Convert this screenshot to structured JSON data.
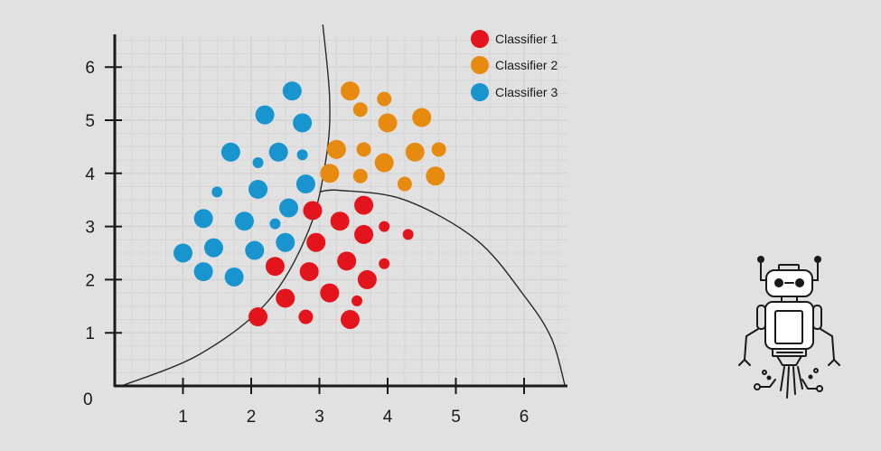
{
  "chart_data": {
    "type": "scatter",
    "title": "",
    "xlabel": "",
    "ylabel": "",
    "xlim": [
      0,
      6.6
    ],
    "ylim": [
      0,
      6.5
    ],
    "xticks": [
      "1",
      "2",
      "3",
      "4",
      "5",
      "6"
    ],
    "yticks": [
      "1",
      "2",
      "3",
      "4",
      "5",
      "6"
    ],
    "origin_label": "0",
    "grid": true,
    "legend_position": "top-right",
    "series": [
      {
        "name": "Classifier 1",
        "color": "#e3141b",
        "points": [
          [
            2.9,
            3.3,
            "l"
          ],
          [
            3.3,
            3.1,
            "l"
          ],
          [
            3.65,
            3.4,
            "l"
          ],
          [
            3.95,
            3.0,
            "s"
          ],
          [
            2.95,
            2.7,
            "l"
          ],
          [
            3.65,
            2.85,
            "l"
          ],
          [
            4.3,
            2.85,
            "s"
          ],
          [
            2.35,
            2.25,
            "l"
          ],
          [
            2.85,
            2.15,
            "l"
          ],
          [
            3.4,
            2.35,
            "l"
          ],
          [
            3.7,
            2.0,
            "l"
          ],
          [
            3.95,
            2.3,
            "s"
          ],
          [
            2.5,
            1.65,
            "l"
          ],
          [
            3.15,
            1.75,
            "l"
          ],
          [
            3.55,
            1.6,
            "s"
          ],
          [
            2.1,
            1.3,
            "l"
          ],
          [
            2.8,
            1.3,
            "m"
          ],
          [
            3.45,
            1.25,
            "l"
          ]
        ]
      },
      {
        "name": "Classifier 2",
        "color": "#e68a10",
        "points": [
          [
            3.45,
            5.55,
            "l"
          ],
          [
            3.95,
            5.4,
            "m"
          ],
          [
            3.6,
            5.2,
            "m"
          ],
          [
            4.0,
            4.95,
            "l"
          ],
          [
            4.5,
            5.05,
            "l"
          ],
          [
            3.25,
            4.45,
            "l"
          ],
          [
            3.65,
            4.45,
            "m"
          ],
          [
            4.4,
            4.4,
            "l"
          ],
          [
            4.75,
            4.45,
            "m"
          ],
          [
            3.15,
            4.0,
            "l"
          ],
          [
            3.6,
            3.95,
            "m"
          ],
          [
            3.95,
            4.2,
            "l"
          ],
          [
            4.25,
            3.8,
            "m"
          ],
          [
            4.7,
            3.95,
            "l"
          ]
        ]
      },
      {
        "name": "Classifier 3",
        "color": "#1895cf",
        "points": [
          [
            2.6,
            5.55,
            "l"
          ],
          [
            2.2,
            5.1,
            "l"
          ],
          [
            2.75,
            4.95,
            "l"
          ],
          [
            1.7,
            4.4,
            "l"
          ],
          [
            2.4,
            4.4,
            "l"
          ],
          [
            2.1,
            4.2,
            "s"
          ],
          [
            2.75,
            4.35,
            "s"
          ],
          [
            1.5,
            3.65,
            "s"
          ],
          [
            2.1,
            3.7,
            "l"
          ],
          [
            2.8,
            3.8,
            "l"
          ],
          [
            1.3,
            3.15,
            "l"
          ],
          [
            1.9,
            3.1,
            "l"
          ],
          [
            2.35,
            3.05,
            "s"
          ],
          [
            2.55,
            3.35,
            "l"
          ],
          [
            1.0,
            2.5,
            "l"
          ],
          [
            1.45,
            2.6,
            "l"
          ],
          [
            2.05,
            2.55,
            "l"
          ],
          [
            2.5,
            2.7,
            "l"
          ],
          [
            1.3,
            2.15,
            "l"
          ],
          [
            1.75,
            2.05,
            "l"
          ]
        ]
      }
    ],
    "decision_boundaries": [
      {
        "name": "left-boundary",
        "points": [
          [
            0.1,
            0.0
          ],
          [
            1.25,
            0.6
          ],
          [
            2.25,
            1.6
          ],
          [
            2.85,
            2.95
          ],
          [
            3.1,
            4.3
          ],
          [
            3.15,
            5.4
          ],
          [
            3.05,
            6.8
          ]
        ]
      },
      {
        "name": "right-boundary",
        "points": [
          [
            3.0,
            3.65
          ],
          [
            3.3,
            3.68
          ],
          [
            4.25,
            3.5
          ],
          [
            5.3,
            2.75
          ],
          [
            6.0,
            1.7
          ],
          [
            6.4,
            0.9
          ],
          [
            6.6,
            0.0
          ]
        ]
      }
    ]
  },
  "robot_icon": {
    "name": "robot-icon",
    "color": "#1a1a1a"
  }
}
